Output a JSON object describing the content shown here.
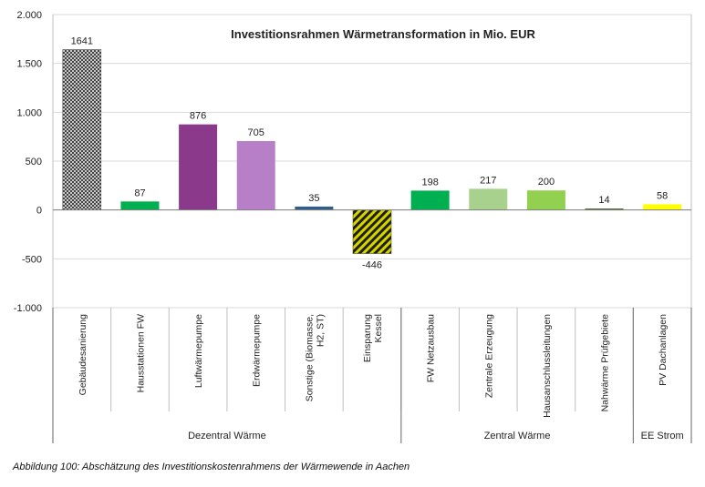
{
  "chart_data": {
    "type": "bar",
    "title": "Investitionsrahmen Wärmetransformation in Mio. EUR",
    "ylim": [
      -1000,
      2000
    ],
    "yticks": [
      {
        "value": 2000,
        "label": "2.000"
      },
      {
        "value": 1500,
        "label": "1.500"
      },
      {
        "value": 1000,
        "label": "1.000"
      },
      {
        "value": 500,
        "label": "500"
      },
      {
        "value": 0,
        "label": "0"
      },
      {
        "value": -500,
        "label": "-500"
      },
      {
        "value": -1000,
        "label": "-1.000"
      }
    ],
    "grid": true,
    "legend": "none",
    "categories": [
      {
        "lines": [
          "Gebäudesanierung"
        ]
      },
      {
        "lines": [
          "Hausstationen FW"
        ]
      },
      {
        "lines": [
          "Luftwärmepumpe"
        ]
      },
      {
        "lines": [
          "Erdwärmepumpe"
        ]
      },
      {
        "lines": [
          "Sonstige (Biomasse,",
          "H2, ST)"
        ]
      },
      {
        "lines": [
          "Einsparung",
          "Kessel"
        ]
      },
      {
        "lines": [
          "FW Netzausbau"
        ]
      },
      {
        "lines": [
          "Zentrale Erzeugung"
        ]
      },
      {
        "lines": [
          "Hausanschlussleitungen"
        ]
      },
      {
        "lines": [
          "Nahwärme Prüfgebiete"
        ]
      },
      {
        "lines": [
          "PV Dachanlagen"
        ]
      }
    ],
    "values": [
      1641,
      87,
      876,
      705,
      35,
      -446,
      198,
      217,
      200,
      14,
      58
    ],
    "data_labels": [
      "1641",
      "87",
      "876",
      "705",
      "35",
      "-446",
      "198",
      "217",
      "200",
      "14",
      "58"
    ],
    "bar_styles": [
      {
        "color": "#4a4a4a",
        "pattern": "grid"
      },
      {
        "color": "#00b050",
        "pattern": "solid"
      },
      {
        "color": "#8b3a8b",
        "pattern": "solid"
      },
      {
        "color": "#b87fc9",
        "pattern": "solid"
      },
      {
        "color": "#2e5f8a",
        "pattern": "solid"
      },
      {
        "color": "#d4d400",
        "pattern": "stripes"
      },
      {
        "color": "#00b050",
        "pattern": "solid"
      },
      {
        "color": "#a9d18e",
        "pattern": "solid"
      },
      {
        "color": "#92d050",
        "pattern": "solid"
      },
      {
        "color": "#375623",
        "pattern": "solid"
      },
      {
        "color": "#ffff00",
        "pattern": "solid"
      }
    ],
    "groups": [
      {
        "label": "Dezentral Wärme",
        "from": 0,
        "to": 5
      },
      {
        "label": "Zentral Wärme",
        "from": 6,
        "to": 9
      },
      {
        "label": "EE Strom",
        "from": 10,
        "to": 10
      }
    ]
  },
  "caption": "Abbildung 100: Abschätzung des Investitionskostenrahmens der Wärmewende in Aachen"
}
